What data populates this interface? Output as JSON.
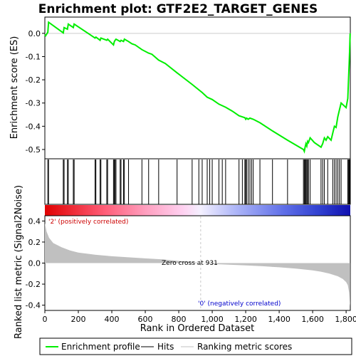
{
  "chart_data": {
    "type": "line",
    "title": "Enrichment plot: GTF2E2_TARGET_GENES",
    "panels": {
      "enrichment": {
        "ylabel": "Enrichment score (ES)",
        "ylim": [
          -0.54,
          0.07
        ],
        "yticks": [
          "0.0",
          "-0.1",
          "-0.2",
          "-0.3",
          "-0.4",
          "-0.5"
        ],
        "ytick_values": [
          0.0,
          -0.1,
          -0.2,
          -0.3,
          -0.4,
          -0.5
        ],
        "series_name": "Enrichment profile",
        "color": "#00ee00",
        "profile": [
          [
            0,
            -0.005
          ],
          [
            5,
            -0.01
          ],
          [
            18,
            0.005
          ],
          [
            22,
            0.048
          ],
          [
            110,
            0.002
          ],
          [
            115,
            0.025
          ],
          [
            135,
            0.018
          ],
          [
            140,
            0.04
          ],
          [
            170,
            0.025
          ],
          [
            175,
            0.04
          ],
          [
            300,
            -0.02
          ],
          [
            305,
            -0.016
          ],
          [
            330,
            -0.03
          ],
          [
            335,
            -0.02
          ],
          [
            370,
            -0.03
          ],
          [
            375,
            -0.025
          ],
          [
            410,
            -0.05
          ],
          [
            415,
            -0.035
          ],
          [
            420,
            -0.03
          ],
          [
            425,
            -0.025
          ],
          [
            450,
            -0.035
          ],
          [
            455,
            -0.03
          ],
          [
            470,
            -0.035
          ],
          [
            475,
            -0.025
          ],
          [
            500,
            -0.035
          ],
          [
            520,
            -0.045
          ],
          [
            540,
            -0.05
          ],
          [
            580,
            -0.07
          ],
          [
            620,
            -0.085
          ],
          [
            640,
            -0.09
          ],
          [
            680,
            -0.115
          ],
          [
            720,
            -0.13
          ],
          [
            790,
            -0.17
          ],
          [
            880,
            -0.22
          ],
          [
            940,
            -0.255
          ],
          [
            970,
            -0.275
          ],
          [
            1000,
            -0.285
          ],
          [
            1040,
            -0.305
          ],
          [
            1080,
            -0.318
          ],
          [
            1120,
            -0.335
          ],
          [
            1160,
            -0.355
          ],
          [
            1195,
            -0.363
          ],
          [
            1200,
            -0.37
          ],
          [
            1205,
            -0.365
          ],
          [
            1215,
            -0.37
          ],
          [
            1225,
            -0.365
          ],
          [
            1245,
            -0.37
          ],
          [
            1285,
            -0.385
          ],
          [
            1360,
            -0.42
          ],
          [
            1450,
            -0.46
          ],
          [
            1545,
            -0.5
          ],
          [
            1550,
            -0.508
          ],
          [
            1555,
            -0.49
          ],
          [
            1560,
            -0.475
          ],
          [
            1565,
            -0.485
          ],
          [
            1570,
            -0.465
          ],
          [
            1575,
            -0.47
          ],
          [
            1585,
            -0.45
          ],
          [
            1610,
            -0.47
          ],
          [
            1650,
            -0.49
          ],
          [
            1660,
            -0.475
          ],
          [
            1670,
            -0.45
          ],
          [
            1680,
            -0.46
          ],
          [
            1690,
            -0.445
          ],
          [
            1710,
            -0.46
          ],
          [
            1720,
            -0.43
          ],
          [
            1730,
            -0.4
          ],
          [
            1740,
            -0.405
          ],
          [
            1750,
            -0.36
          ],
          [
            1760,
            -0.33
          ],
          [
            1770,
            -0.3
          ],
          [
            1800,
            -0.32
          ],
          [
            1810,
            -0.28
          ],
          [
            1815,
            -0.19
          ],
          [
            1818,
            -0.13
          ],
          [
            1821,
            -0.07
          ],
          [
            1824,
            0.0
          ]
        ]
      },
      "hits": {
        "series_name": "Hits",
        "positions": [
          18,
          22,
          110,
          115,
          135,
          140,
          170,
          175,
          300,
          305,
          330,
          335,
          370,
          375,
          410,
          415,
          420,
          425,
          450,
          455,
          470,
          475,
          500,
          580,
          620,
          680,
          790,
          880,
          920,
          940,
          970,
          985,
          1000,
          1040,
          1060,
          1080,
          1160,
          1180,
          1195,
          1200,
          1205,
          1215,
          1225,
          1235,
          1245,
          1285,
          1360,
          1450,
          1545,
          1550,
          1555,
          1560,
          1565,
          1570,
          1575,
          1585,
          1650,
          1660,
          1670,
          1690,
          1720,
          1730,
          1740,
          1750,
          1760,
          1770,
          1810,
          1815,
          1818,
          1821,
          1824
        ]
      },
      "metric": {
        "ylabel": "Ranked list metric (Signal2Noise)",
        "ylim": [
          -0.45,
          0.45
        ],
        "yticks": [
          "0.4",
          "0.2",
          "0.0",
          "-0.2",
          "-0.4"
        ],
        "ytick_values": [
          0.4,
          0.2,
          0.0,
          -0.2,
          -0.4
        ],
        "curve": [
          [
            0,
            0.38
          ],
          [
            10,
            0.3
          ],
          [
            25,
            0.24
          ],
          [
            50,
            0.19
          ],
          [
            100,
            0.15
          ],
          [
            150,
            0.12
          ],
          [
            200,
            0.1
          ],
          [
            300,
            0.08
          ],
          [
            400,
            0.065
          ],
          [
            500,
            0.055
          ],
          [
            600,
            0.045
          ],
          [
            700,
            0.035
          ],
          [
            800,
            0.02
          ],
          [
            900,
            0.007
          ],
          [
            931,
            0.0
          ],
          [
            1000,
            -0.008
          ],
          [
            1100,
            -0.015
          ],
          [
            1200,
            -0.022
          ],
          [
            1300,
            -0.03
          ],
          [
            1400,
            -0.04
          ],
          [
            1500,
            -0.052
          ],
          [
            1600,
            -0.07
          ],
          [
            1650,
            -0.082
          ],
          [
            1700,
            -0.1
          ],
          [
            1750,
            -0.125
          ],
          [
            1780,
            -0.15
          ],
          [
            1800,
            -0.18
          ],
          [
            1810,
            -0.21
          ],
          [
            1818,
            -0.28
          ],
          [
            1824,
            -0.41
          ]
        ],
        "zero_cross_label": "Zero cross at 931",
        "zero_cross": 931,
        "pos_label": "'2' (positively correlated)",
        "neg_label": "'0' (negatively correlated)"
      }
    },
    "xlabel": "Rank in Ordered Dataset",
    "xlim": [
      0,
      1825
    ],
    "xticks": [
      "0",
      "200",
      "400",
      "600",
      "800",
      "1,000",
      "1,200",
      "1,400",
      "1,600",
      "1,800"
    ],
    "xtick_values": [
      0,
      200,
      400,
      600,
      800,
      1000,
      1200,
      1400,
      1600,
      1800
    ],
    "legend": {
      "placement": "bottom",
      "items": [
        "Enrichment profile",
        "Hits",
        "Ranking metric scores"
      ]
    },
    "colors": {
      "profile": "#00ee00",
      "pos_label": "#cc0000",
      "neg_label": "#0000cc",
      "metric_fill": "#c0c0c0"
    }
  }
}
